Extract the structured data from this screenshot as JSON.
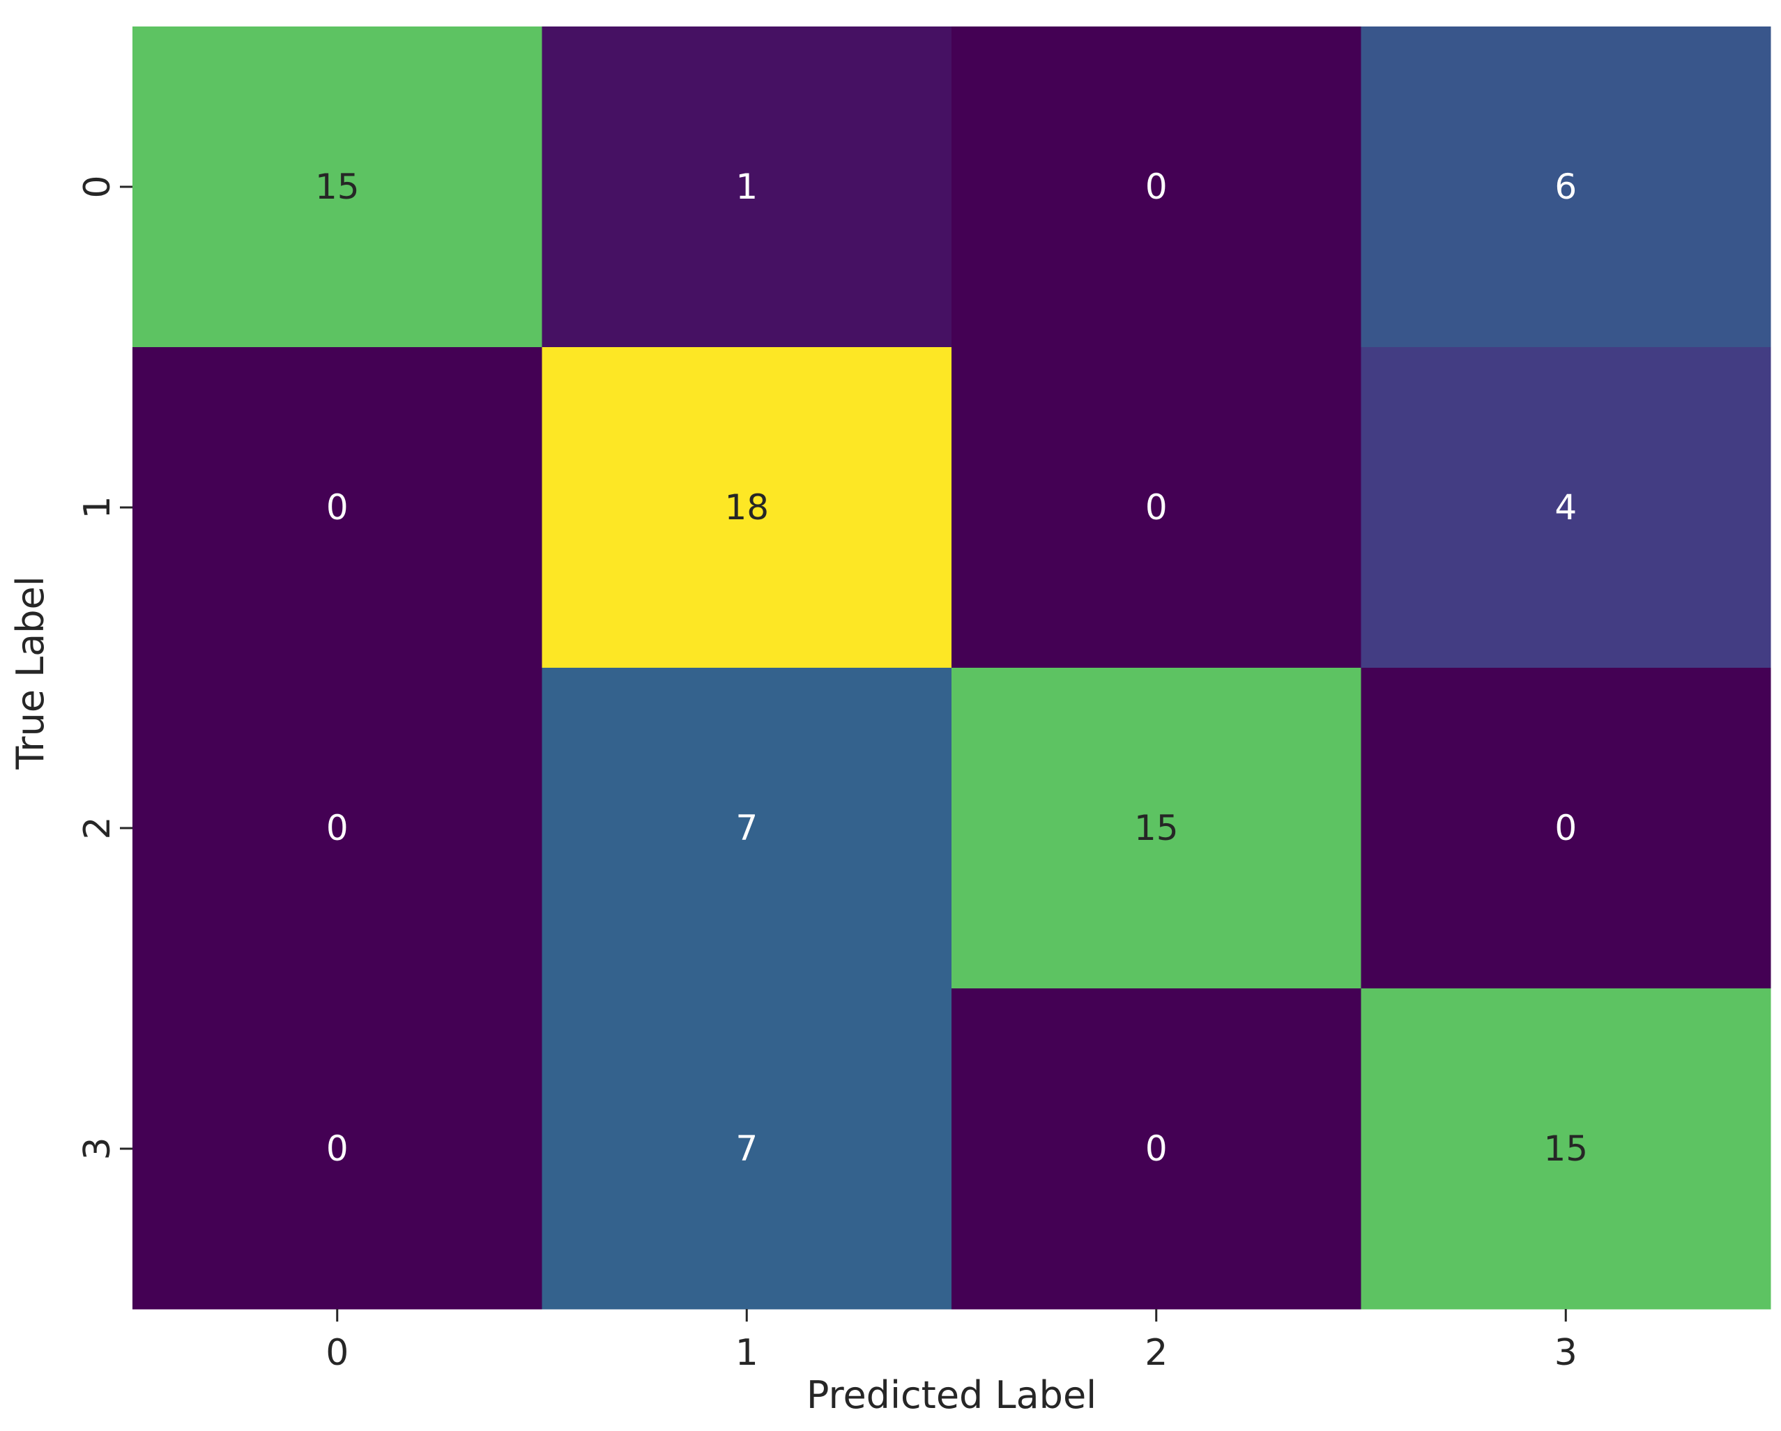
{
  "chart_data": {
    "type": "heatmap",
    "title": "",
    "xlabel": "Predicted Label",
    "ylabel": "True Label",
    "x_tick_labels": [
      "0",
      "1",
      "2",
      "3"
    ],
    "y_tick_labels": [
      "0",
      "1",
      "2",
      "3"
    ],
    "values": [
      [
        15,
        1,
        0,
        6
      ],
      [
        0,
        18,
        0,
        4
      ],
      [
        0,
        7,
        15,
        0
      ],
      [
        0,
        7,
        0,
        15
      ]
    ],
    "value_range": [
      0,
      18
    ],
    "colormap": "viridis",
    "colorbar": false,
    "grid": false,
    "annotation_colors": {
      "dark_text": "#262626",
      "light_text": "#ffffff"
    }
  }
}
